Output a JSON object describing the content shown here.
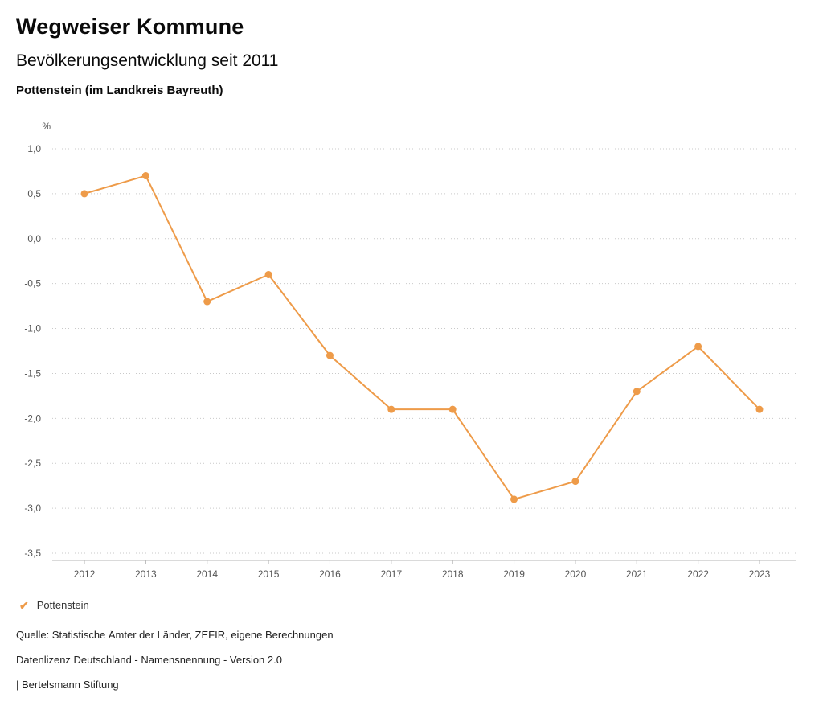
{
  "header": {
    "title": "Wegweiser Kommune",
    "subtitle": "Bevölkerungsentwicklung seit 2011",
    "region": "Pottenstein (im Landkreis Bayreuth)"
  },
  "chart_data": {
    "type": "line",
    "title": "Bevölkerungsentwicklung seit 2011",
    "xlabel": "",
    "ylabel": "%",
    "unit_label": "%",
    "x": [
      "2012",
      "2013",
      "2014",
      "2015",
      "2016",
      "2017",
      "2018",
      "2019",
      "2020",
      "2021",
      "2022",
      "2023"
    ],
    "series": [
      {
        "name": "Pottenstein",
        "values": [
          0.5,
          0.7,
          -0.7,
          -0.4,
          -1.3,
          -1.9,
          -1.9,
          -2.9,
          -2.7,
          -1.7,
          -1.2,
          -1.9
        ],
        "color": "#EE9B49"
      }
    ],
    "ylim": [
      -3.5,
      1.0
    ],
    "ytick_step": 0.5,
    "ytick_labels": [
      "1,0",
      "0,5",
      "0,0",
      "-0,5",
      "-1,0",
      "-1,5",
      "-2,0",
      "-2,5",
      "-3,0",
      "-3,5"
    ],
    "grid": "dotted-horizontal",
    "legend_position": "bottom-left"
  },
  "legend": {
    "items": [
      {
        "label": "Pottenstein",
        "color": "#EE9B49",
        "check_icon": "✔"
      }
    ]
  },
  "footer": {
    "source": "Quelle: Statistische Ämter der Länder, ZEFIR, eigene Berechnungen",
    "license": "Datenlizenz Deutschland - Namensnennung - Version 2.0",
    "attribution": "| Bertelsmann Stiftung"
  },
  "colors": {
    "accent": "#EE9B49",
    "grid": "#c9c9c9",
    "tick_text": "#555555"
  }
}
